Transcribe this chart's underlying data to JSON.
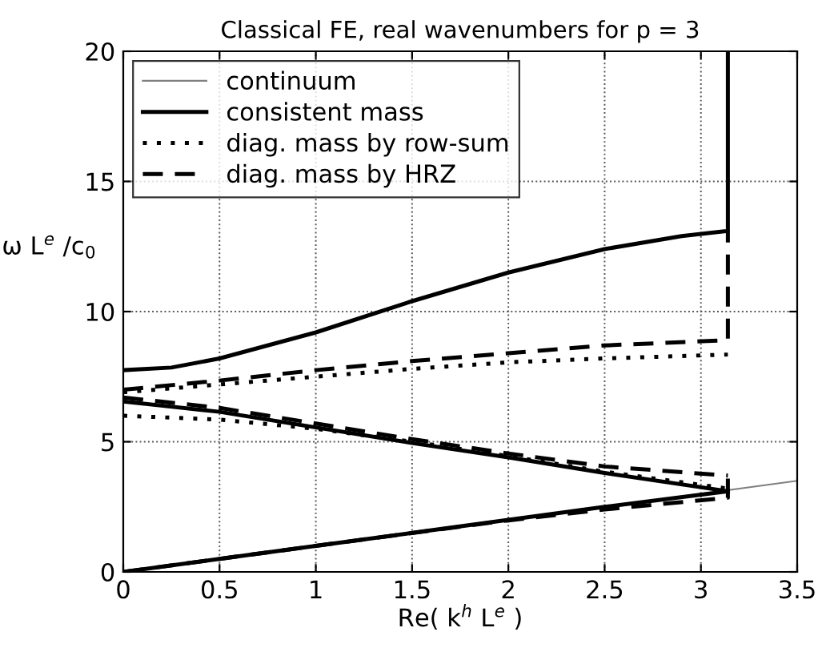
{
  "chart_data": {
    "type": "line",
    "title": "Classical FE, real wavenumbers for p = 3",
    "xlabel": "Re( k$^{h}$ L$^{e}$ )",
    "ylabel": "ω L$^{e}$ /c$_{0}$",
    "xlim": [
      0,
      3.5
    ],
    "ylim": [
      0,
      20
    ],
    "xticks": [
      0,
      0.5,
      1,
      1.5,
      2,
      2.5,
      3,
      3.5
    ],
    "yticks": [
      0,
      5,
      10,
      15,
      20
    ],
    "grid": true,
    "legend": "top left",
    "marker": "none",
    "series": [
      {
        "name": "continuum",
        "color": "#808080",
        "line_style": "solid",
        "x": [
          0,
          3.5
        ],
        "values": [
          0,
          3.5
        ]
      },
      {
        "name": "consistent mass",
        "color": "#000000",
        "line_style": "solid",
        "x": [
          0,
          0.5,
          1,
          1.5,
          2,
          2.5,
          3.14
        ],
        "values": [
          0,
          0.5,
          1,
          1.5,
          2,
          2.5,
          3.1
        ]
      },
      {
        "color": "#000000",
        "line_style": "solid",
        "x": [
          0,
          0.5,
          1,
          1.5,
          2,
          2.5,
          3.14
        ],
        "values": [
          6.55,
          6.15,
          5.55,
          4.95,
          4.4,
          3.8,
          3.1
        ]
      },
      {
        "color": "#000000",
        "line_style": "solid",
        "x": [
          0,
          0.25,
          0.5,
          1,
          1.5,
          2,
          2.5,
          2.9,
          3.14,
          3.14
        ],
        "values": [
          7.75,
          7.85,
          8.2,
          9.2,
          10.4,
          11.5,
          12.4,
          12.9,
          13.1,
          20
        ]
      },
      {
        "name": "diag. mass by row-sum",
        "color": "#000000",
        "line_style": "dotted",
        "x": [
          0,
          0.5,
          1,
          1.5,
          2,
          2.5,
          3.14
        ],
        "values": [
          6.0,
          5.85,
          5.5,
          5.0,
          4.45,
          3.85,
          3.2
        ]
      },
      {
        "color": "#000000",
        "line_style": "dotted",
        "x": [
          0,
          0.5,
          1,
          1.5,
          2,
          2.5,
          3.14
        ],
        "values": [
          6.9,
          7.2,
          7.5,
          7.8,
          8.05,
          8.2,
          8.35
        ]
      },
      {
        "name": "diag. mass by HRZ",
        "color": "#000000",
        "line_style": "dashed",
        "x": [
          0,
          1,
          2,
          2.5,
          3.14,
          3.14
        ],
        "values": [
          0,
          1,
          1.98,
          2.4,
          2.85,
          3.7
        ]
      },
      {
        "color": "#000000",
        "line_style": "dashed",
        "x": [
          0,
          0.5,
          1,
          1.5,
          2,
          2.5,
          3.14
        ],
        "values": [
          6.7,
          6.3,
          5.7,
          5.1,
          4.55,
          4.05,
          3.7
        ]
      },
      {
        "color": "#000000",
        "line_style": "dashed",
        "x": [
          0,
          0.5,
          1,
          1.5,
          2,
          2.5,
          3.14,
          3.14
        ],
        "values": [
          7.0,
          7.35,
          7.75,
          8.1,
          8.4,
          8.7,
          8.9,
          13.1
        ]
      }
    ]
  }
}
